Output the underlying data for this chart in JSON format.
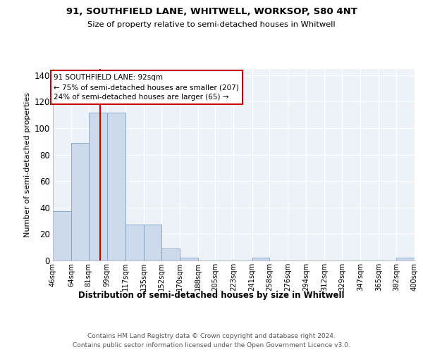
{
  "title1": "91, SOUTHFIELD LANE, WHITWELL, WORKSOP, S80 4NT",
  "title2": "Size of property relative to semi-detached houses in Whitwell",
  "xlabel": "Distribution of semi-detached houses by size in Whitwell",
  "ylabel": "Number of semi-detached properties",
  "bar_color": "#ccdaec",
  "bar_edge_color": "#7aA0c4",
  "annotation_box_color": "#cc0000",
  "property_line_value": 92,
  "annotation_line1": "91 SOUTHFIELD LANE: 92sqm",
  "annotation_line2": "← 75% of semi-detached houses are smaller (207)",
  "annotation_line3": "24% of semi-detached houses are larger (65) →",
  "bins": [
    46,
    64,
    81,
    99,
    117,
    135,
    152,
    170,
    188,
    205,
    223,
    241,
    258,
    276,
    294,
    312,
    329,
    347,
    365,
    382,
    400
  ],
  "bin_labels": [
    "46sqm",
    "64sqm",
    "81sqm",
    "99sqm",
    "117sqm",
    "135sqm",
    "152sqm",
    "170sqm",
    "188sqm",
    "205sqm",
    "223sqm",
    "241sqm",
    "258sqm",
    "276sqm",
    "294sqm",
    "312sqm",
    "329sqm",
    "347sqm",
    "365sqm",
    "382sqm",
    "400sqm"
  ],
  "counts": [
    37,
    89,
    112,
    112,
    27,
    27,
    9,
    2,
    0,
    0,
    0,
    2,
    0,
    0,
    0,
    0,
    0,
    0,
    0,
    2
  ],
  "ylim": [
    0,
    145
  ],
  "yticks": [
    0,
    20,
    40,
    60,
    80,
    100,
    120,
    140
  ],
  "footer1": "Contains HM Land Registry data © Crown copyright and database right 2024.",
  "footer2": "Contains public sector information licensed under the Open Government Licence v3.0.",
  "background_color": "#edf2f9",
  "fig_background": "#ffffff"
}
